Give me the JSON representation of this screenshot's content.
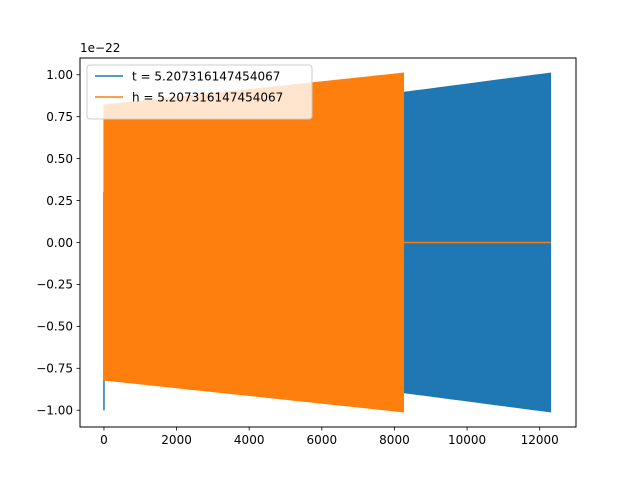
{
  "chart_data": {
    "type": "area",
    "title": "",
    "xlabel": "",
    "ylabel": "",
    "offset_text": "1e−22",
    "y_scale": 1e-22,
    "xlim": [
      -660,
      13000
    ],
    "ylim": [
      -1.1,
      1.1
    ],
    "x_ticks": [
      0,
      2000,
      4000,
      6000,
      8000,
      10000,
      12000
    ],
    "x_tick_labels": [
      "0",
      "2000",
      "4000",
      "6000",
      "8000",
      "10000",
      "12000"
    ],
    "y_ticks": [
      1.0,
      0.75,
      0.5,
      0.25,
      0.0,
      -0.25,
      -0.5,
      -0.75,
      -1.0
    ],
    "y_tick_labels": [
      "1.00",
      "0.75",
      "0.50",
      "0.25",
      "0.00",
      "−0.25",
      "−0.50",
      "−0.75",
      "−1.00"
    ],
    "grid": false,
    "legend_position": "upper-left",
    "series": [
      {
        "name": "t = 5.207316147454067",
        "color": "#1f77b4",
        "envelope_x": [
          0,
          8250,
          12300
        ],
        "envelope_upper": [
          0.82,
          0.895,
          1.01
        ],
        "envelope_lower": [
          -0.82,
          -0.895,
          -1.01
        ],
        "x_end": 12300,
        "initial_spike": {
          "x": 0,
          "min": -1.0,
          "max": 0.3
        }
      },
      {
        "name": "h = 5.207316147454067",
        "color": "#ff7f0e",
        "envelope_x": [
          0,
          8250
        ],
        "envelope_upper": [
          0.82,
          1.01
        ],
        "envelope_lower": [
          -0.82,
          -1.01
        ],
        "x_end": 8250,
        "flat_after": {
          "x_start": 8250,
          "x_end": 12300,
          "value": 0.0
        }
      }
    ]
  }
}
